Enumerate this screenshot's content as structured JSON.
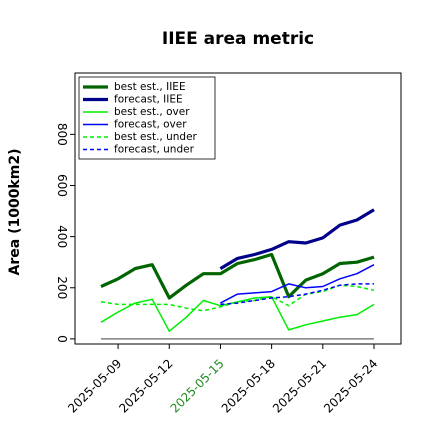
{
  "chart_data": {
    "type": "line",
    "title": "IIEE area metric",
    "ylabel": "Area (1000km2)",
    "xlabel": "",
    "x_ticks": [
      "2025-05-09",
      "2025-05-12",
      "2025-05-15",
      "2025-05-18",
      "2025-05-21",
      "2025-05-24"
    ],
    "highlighted_tick": "2025-05-15",
    "highlight_color": "#228b22",
    "y_ticks": [
      0,
      200,
      400,
      600,
      800
    ],
    "xlim": [
      "2025-05-08",
      "2025-05-24"
    ],
    "ylim": [
      -20,
      1040
    ],
    "grid": false,
    "legend_position": "top-left",
    "series": [
      {
        "name": "best est., IIEE",
        "color": "#006400",
        "style": "solid",
        "weight": "thick",
        "x": [
          "2025-05-08",
          "2025-05-09",
          "2025-05-10",
          "2025-05-11",
          "2025-05-12",
          "2025-05-13",
          "2025-05-14",
          "2025-05-15",
          "2025-05-16",
          "2025-05-17",
          "2025-05-18",
          "2025-05-19",
          "2025-05-20",
          "2025-05-21",
          "2025-05-22",
          "2025-05-23",
          "2025-05-24"
        ],
        "y": [
          205,
          235,
          275,
          290,
          160,
          210,
          255,
          255,
          295,
          310,
          330,
          165,
          230,
          255,
          295,
          300,
          320
        ]
      },
      {
        "name": "forecast, IIEE",
        "color": "#00008b",
        "style": "solid",
        "weight": "thick",
        "x": [
          "2025-05-15",
          "2025-05-16",
          "2025-05-17",
          "2025-05-18",
          "2025-05-19",
          "2025-05-20",
          "2025-05-21",
          "2025-05-22",
          "2025-05-23",
          "2025-05-24"
        ],
        "y": [
          275,
          315,
          330,
          350,
          380,
          375,
          395,
          445,
          465,
          505
        ]
      },
      {
        "name": "best est., over",
        "color": "#00ee00",
        "style": "solid",
        "weight": "thin",
        "x": [
          "2025-05-08",
          "2025-05-09",
          "2025-05-10",
          "2025-05-11",
          "2025-05-12",
          "2025-05-13",
          "2025-05-14",
          "2025-05-15",
          "2025-05-16",
          "2025-05-17",
          "2025-05-18",
          "2025-05-19",
          "2025-05-20",
          "2025-05-21",
          "2025-05-22",
          "2025-05-23",
          "2025-05-24"
        ],
        "y": [
          65,
          105,
          140,
          155,
          30,
          85,
          150,
          130,
          145,
          160,
          165,
          35,
          55,
          70,
          85,
          95,
          135
        ]
      },
      {
        "name": "forecast, over",
        "color": "#0000ff",
        "style": "solid",
        "weight": "thin",
        "x": [
          "2025-05-15",
          "2025-05-16",
          "2025-05-17",
          "2025-05-18",
          "2025-05-19",
          "2025-05-20",
          "2025-05-21",
          "2025-05-22",
          "2025-05-23",
          "2025-05-24"
        ],
        "y": [
          140,
          175,
          180,
          185,
          215,
          200,
          205,
          235,
          255,
          290
        ]
      },
      {
        "name": "best est., under",
        "color": "#00ee00",
        "style": "dashed",
        "weight": "thin",
        "x": [
          "2025-05-08",
          "2025-05-09",
          "2025-05-10",
          "2025-05-11",
          "2025-05-12",
          "2025-05-13",
          "2025-05-14",
          "2025-05-15",
          "2025-05-16",
          "2025-05-17",
          "2025-05-18",
          "2025-05-19",
          "2025-05-20",
          "2025-05-21",
          "2025-05-22",
          "2025-05-23",
          "2025-05-24"
        ],
        "y": [
          145,
          135,
          135,
          135,
          135,
          120,
          110,
          125,
          145,
          150,
          165,
          130,
          175,
          185,
          210,
          205,
          190
        ]
      },
      {
        "name": "forecast, under",
        "color": "#0000ff",
        "style": "dashed",
        "weight": "thin",
        "x": [
          "2025-05-15",
          "2025-05-16",
          "2025-05-17",
          "2025-05-18",
          "2025-05-19",
          "2025-05-20",
          "2025-05-21",
          "2025-05-22",
          "2025-05-23",
          "2025-05-24"
        ],
        "y": [
          135,
          140,
          150,
          160,
          165,
          175,
          190,
          210,
          215,
          215
        ]
      },
      {
        "name": "",
        "color": "#808080",
        "style": "solid",
        "weight": "thin",
        "x": [
          "2025-05-08",
          "2025-05-24"
        ],
        "y": [
          0,
          0
        ]
      }
    ]
  }
}
